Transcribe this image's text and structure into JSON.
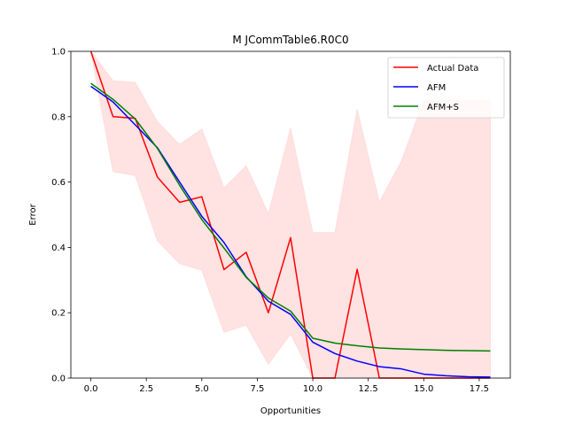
{
  "chart_data": {
    "type": "line",
    "title": "M  JCommTable6.R0C0",
    "xlabel": "Opportunities",
    "ylabel": "Error",
    "xlim": [
      -0.9,
      18.9
    ],
    "ylim": [
      0,
      1.0
    ],
    "xticks": [
      0,
      2.5,
      5,
      7.5,
      10,
      12.5,
      15,
      17.5
    ],
    "xtick_labels": [
      "0.0",
      "2.5",
      "5.0",
      "7.5",
      "10.0",
      "12.5",
      "15.0",
      "17.5"
    ],
    "yticks": [
      0,
      0.2,
      0.4,
      0.6,
      0.8,
      1.0
    ],
    "ytick_labels": [
      "0.0",
      "0.2",
      "0.4",
      "0.6",
      "0.8",
      "1.0"
    ],
    "legend_position": "top-right",
    "x": [
      0,
      1,
      2,
      3,
      4,
      5,
      6,
      7,
      8,
      9,
      10,
      11,
      12,
      13,
      14,
      15,
      16,
      17,
      18
    ],
    "band": {
      "color": "#ffdddd",
      "upper": [
        1.0,
        0.91,
        0.905,
        0.785,
        0.715,
        0.762,
        0.582,
        0.649,
        0.503,
        0.765,
        0.445,
        0.445,
        0.822,
        0.538,
        0.665,
        0.85,
        0.85,
        0.85,
        0.85
      ],
      "lower": [
        1.0,
        0.632,
        0.62,
        0.42,
        0.35,
        0.33,
        0.14,
        0.162,
        0.042,
        0.135,
        0.0,
        0.0,
        0.0,
        0.0,
        0.0,
        0.0,
        0.0,
        0.0,
        0.0
      ]
    },
    "series": [
      {
        "name": "Actual Data",
        "color": "#ff0000",
        "values": [
          1.0,
          0.8,
          0.795,
          0.615,
          0.538,
          0.555,
          0.332,
          0.385,
          0.2,
          0.43,
          0.0,
          0.0,
          0.333,
          0.0,
          0.0,
          0.0,
          0.0,
          0.0,
          0.0
        ]
      },
      {
        "name": "AFM",
        "color": "#0000ff",
        "values": [
          0.893,
          0.845,
          0.775,
          0.705,
          0.6,
          0.495,
          0.415,
          0.31,
          0.235,
          0.195,
          0.11,
          0.075,
          0.052,
          0.035,
          0.028,
          0.012,
          0.007,
          0.004,
          0.003
        ]
      },
      {
        "name": "AFM+S",
        "color": "#008000",
        "values": [
          0.902,
          0.853,
          0.793,
          0.703,
          0.59,
          0.485,
          0.398,
          0.308,
          0.245,
          0.205,
          0.122,
          0.107,
          0.099,
          0.092,
          0.089,
          0.087,
          0.085,
          0.084,
          0.083
        ]
      }
    ]
  }
}
